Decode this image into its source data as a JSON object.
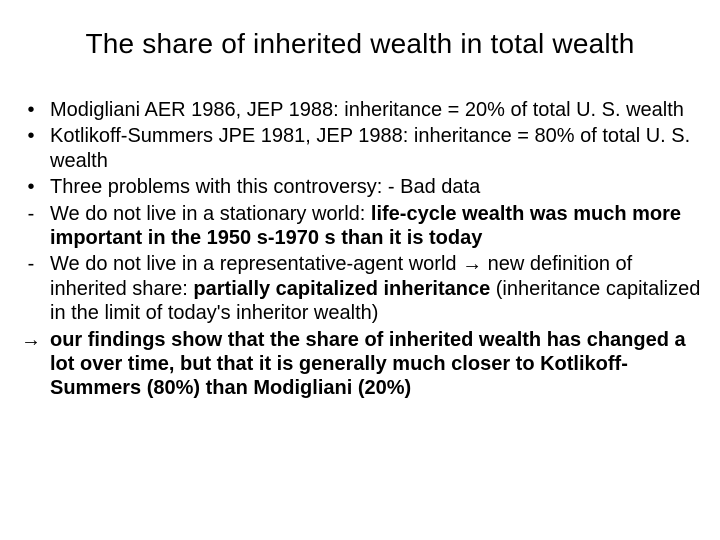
{
  "title": "The share of inherited wealth in total wealth",
  "b1": "Modigliani AER 1986, JEP 1988: inheritance = 20% of total U. S. wealth",
  "b2": "Kotlikoff-Summers JPE 1981, JEP 1988: inheritance = 80% of total U. S. wealth",
  "b3": "Three problems with this controversy:   - Bad data",
  "b4a": "We do not live in a stationary world: ",
  "b4b": "life-cycle wealth was much more important in the 1950 s-1970 s than it is today",
  "b5a": "We do not live in a representative-agent world → new definition of inherited share: ",
  "b5b": "partially capitalized inheritance",
  "b5c": " (inheritance capitalized in the limit of today's inheritor wealth)",
  "b6": "our findings show that the share of inherited wealth has changed a lot over time, but that it is generally much closer to Kotlikoff-Summers (80%) than Modigliani (20%)",
  "colors": {
    "background": "#ffffff",
    "text": "#000000"
  },
  "typography": {
    "title_fontsize": 28,
    "body_fontsize": 20,
    "font_family": "Arial"
  }
}
